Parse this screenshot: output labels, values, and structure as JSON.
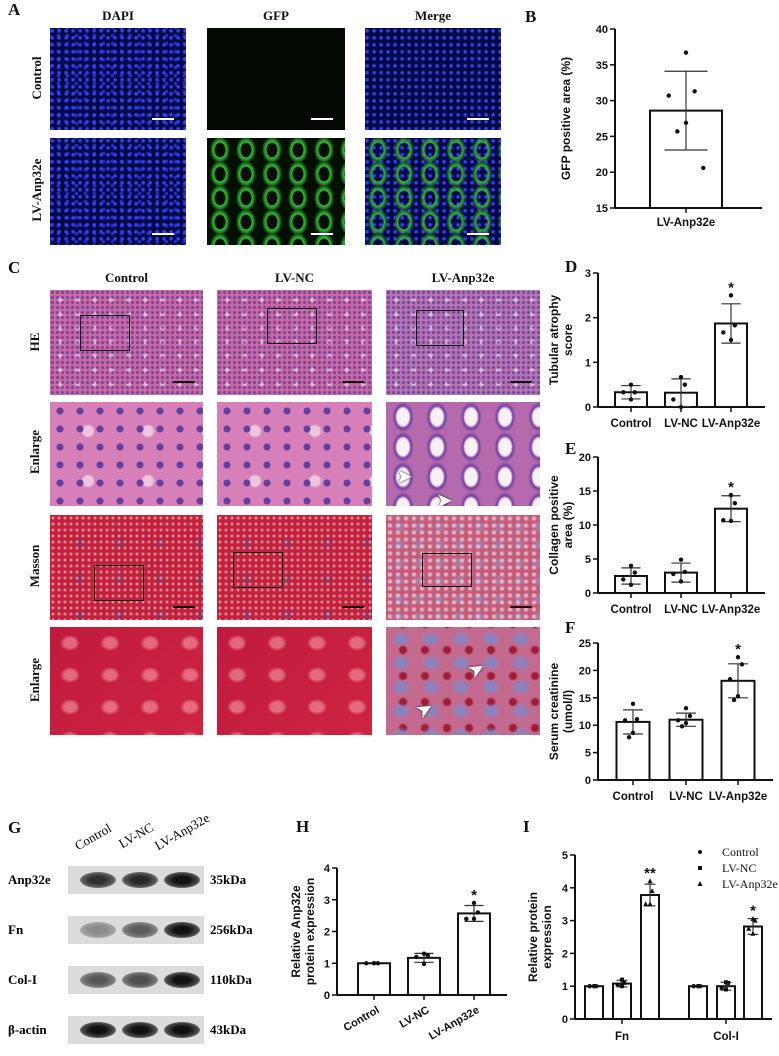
{
  "panels": {
    "A": {
      "label": "A",
      "columns": [
        "DAPI",
        "GFP",
        "Merge"
      ],
      "rows": [
        "Control",
        "LV-Anp32e"
      ]
    },
    "C": {
      "label": "C",
      "columns": [
        "Control",
        "LV-NC",
        "LV-Anp32e"
      ],
      "rows": [
        "HE",
        "Enlarge",
        "Masson",
        "Enlarge"
      ]
    },
    "G": {
      "label": "G",
      "lanes": [
        "Control",
        "LV-NC",
        "LV-Anp32e"
      ],
      "blots": [
        {
          "protein": "Anp32e",
          "size": "35kDa",
          "intensity": [
            0.8,
            0.85,
            1.0
          ]
        },
        {
          "protein": "Fn",
          "size": "256kDa",
          "intensity": [
            0.2,
            0.5,
            1.0
          ]
        },
        {
          "protein": "Col-I",
          "size": "110kDa",
          "intensity": [
            0.55,
            0.6,
            1.0
          ]
        },
        {
          "protein": "β-actin",
          "size": "43kDa",
          "intensity": [
            1.0,
            1.0,
            1.0
          ]
        }
      ]
    }
  },
  "colors": {
    "bar_fill": "#ffffff",
    "stroke": "#111111",
    "scale_bar": "#ffffff"
  },
  "chart_data": [
    {
      "id": "B",
      "label": "B",
      "type": "bar",
      "ylabel": [
        "GFP positive area (%)"
      ],
      "ylim": [
        15,
        40
      ],
      "yticks": [
        15,
        20,
        25,
        30,
        35,
        40
      ],
      "categories": [
        "LV-Anp32e"
      ],
      "series": [
        {
          "mean": [
            28.6
          ],
          "sd": [
            5.5
          ],
          "points": [
            [
              36.7,
              31.3,
              30.7,
              26.9,
              25.7,
              20.6
            ]
          ]
        }
      ],
      "significance": [
        ""
      ]
    },
    {
      "id": "D",
      "label": "D",
      "type": "bar",
      "ylabel": [
        "Tubular atrophy",
        "score"
      ],
      "ylim": [
        0,
        3
      ],
      "yticks": [
        0,
        1,
        2,
        3
      ],
      "categories": [
        "Control",
        "LV-NC",
        "LV-Anp32e"
      ],
      "series": [
        {
          "mean": [
            0.33,
            0.32,
            1.87
          ],
          "sd": [
            0.15,
            0.31,
            0.44
          ],
          "points": [
            [
              0.5,
              0.33,
              0.33,
              0.17
            ],
            [
              0.67,
              0.5,
              0.17,
              0.0
            ],
            [
              2.5,
              1.83,
              1.67,
              1.5
            ]
          ]
        }
      ],
      "significance": [
        "",
        "",
        "*"
      ]
    },
    {
      "id": "E",
      "label": "E",
      "type": "bar",
      "ylabel": [
        "Collagen positive",
        "area (%)"
      ],
      "ylim": [
        0,
        20
      ],
      "yticks": [
        0,
        5,
        10,
        15,
        20
      ],
      "categories": [
        "Control",
        "LV-NC",
        "LV-Anp32e"
      ],
      "series": [
        {
          "mean": [
            2.5,
            3.0,
            12.4
          ],
          "sd": [
            1.2,
            1.4,
            1.9
          ],
          "points": [
            [
              4.0,
              3.0,
              2.0,
              1.2
            ],
            [
              4.9,
              3.1,
              2.8,
              1.7
            ],
            [
              14.4,
              13.2,
              10.7,
              10.6
            ]
          ]
        }
      ],
      "significance": [
        "",
        "",
        "*"
      ]
    },
    {
      "id": "F",
      "label": "F",
      "type": "bar",
      "ylabel": [
        "Serum creatinine",
        "(umol/l)"
      ],
      "ylim": [
        0,
        25
      ],
      "yticks": [
        0,
        5,
        10,
        15,
        20,
        25
      ],
      "categories": [
        "Control",
        "LV-NC",
        "LV-Anp32e"
      ],
      "series": [
        {
          "mean": [
            10.6,
            11.0,
            18.1
          ],
          "sd": [
            2.2,
            1.2,
            3.1
          ],
          "points": [
            [
              13.9,
              11.1,
              10.9,
              8.6,
              7.8
            ],
            [
              13.1,
              11.7,
              10.9,
              10.4,
              9.8
            ],
            [
              22.4,
              21.1,
              18.4,
              15.3,
              14.6
            ]
          ]
        }
      ],
      "significance": [
        "",
        "",
        "*"
      ]
    },
    {
      "id": "H",
      "label": "H",
      "type": "bar",
      "ylabel": [
        "Relative Anp32e",
        "protein expression"
      ],
      "ylim": [
        0,
        4
      ],
      "yticks": [
        0,
        1,
        2,
        3,
        4
      ],
      "categories": [
        "Control",
        "LV-NC",
        "LV-Anp32e"
      ],
      "rotated_labels": true,
      "series": [
        {
          "mean": [
            1.0,
            1.17,
            2.57
          ],
          "sd": [
            0.0,
            0.14,
            0.25
          ],
          "points": [
            [
              1,
              1,
              1,
              1
            ],
            [
              1.3,
              1.25,
              1.2,
              0.98
            ],
            [
              2.9,
              2.6,
              2.4,
              2.4
            ]
          ]
        }
      ],
      "significance": [
        "",
        "",
        "*"
      ]
    },
    {
      "id": "I",
      "label": "I",
      "type": "bar",
      "ylabel": [
        "Relative protein",
        "expression"
      ],
      "ylim": [
        0,
        5
      ],
      "yticks": [
        0,
        1,
        2,
        3,
        4,
        5
      ],
      "categories": [
        "Fn",
        "Col-I"
      ],
      "legend": {
        "position": "top-right",
        "entries": [
          {
            "name": "Control",
            "marker": "circle"
          },
          {
            "name": "LV-NC",
            "marker": "square"
          },
          {
            "name": "LV-Anp32e",
            "marker": "triangle"
          }
        ]
      },
      "series": [
        {
          "name": "Control",
          "mean": [
            1.0,
            1.0
          ],
          "sd": [
            0,
            0
          ],
          "points": [
            [
              1,
              1,
              1,
              1
            ],
            [
              1,
              1,
              1,
              1
            ]
          ]
        },
        {
          "name": "LV-NC",
          "mean": [
            1.08,
            1.0
          ],
          "sd": [
            0.1,
            0.12
          ],
          "points": [
            [
              1.2,
              1.1,
              1.05,
              1.0
            ],
            [
              1.12,
              1.1,
              0.95,
              0.9
            ]
          ]
        },
        {
          "name": "LV-Anp32e",
          "mean": [
            3.78,
            2.82
          ],
          "sd": [
            0.33,
            0.24
          ],
          "points": [
            [
              4.2,
              3.9,
              3.5,
              3.5
            ],
            [
              3.05,
              3.0,
              2.75,
              2.6
            ]
          ]
        }
      ],
      "significance": [
        [
          "",
          "",
          "**"
        ],
        [
          "",
          "",
          "*"
        ]
      ]
    }
  ]
}
